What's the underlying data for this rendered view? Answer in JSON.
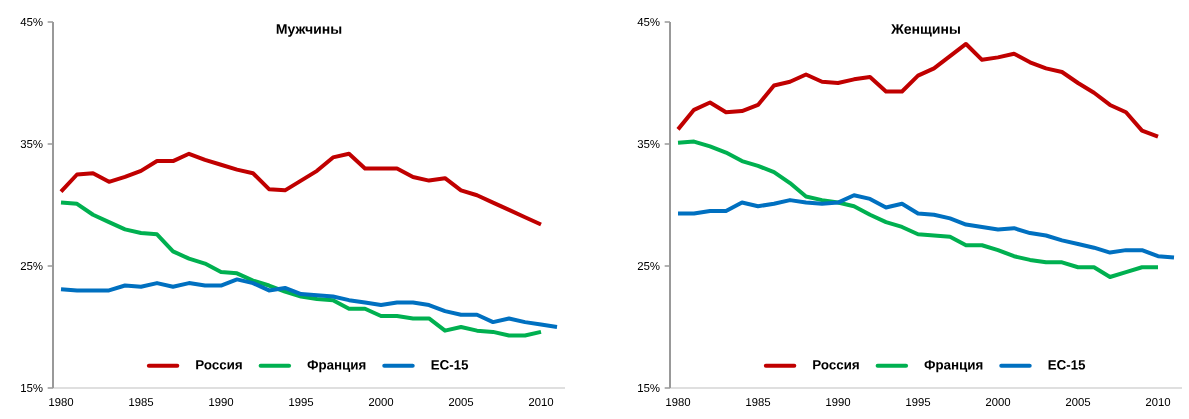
{
  "chart_data": [
    {
      "type": "line",
      "title": "Мужчины",
      "x": [
        1980,
        1981,
        1982,
        1983,
        1984,
        1985,
        1986,
        1987,
        1988,
        1989,
        1990,
        1991,
        1992,
        1993,
        1994,
        1995,
        1996,
        1997,
        1998,
        1999,
        2000,
        2001,
        2002,
        2003,
        2004,
        2005,
        2006,
        2007,
        2008,
        2009,
        2010,
        2011
      ],
      "series": [
        {
          "name": "Россия",
          "color": "#c00000",
          "values": [
            31.1,
            32.5,
            32.6,
            31.9,
            32.3,
            32.8,
            33.6,
            33.6,
            34.2,
            33.7,
            33.3,
            32.9,
            32.6,
            31.3,
            31.2,
            32.0,
            32.8,
            33.9,
            34.2,
            33.0,
            33.0,
            33.0,
            32.3,
            32.0,
            32.2,
            31.2,
            30.8,
            30.2,
            29.6,
            29.0,
            28.4,
            null
          ]
        },
        {
          "name": "Франция",
          "color": "#00b050",
          "values": [
            30.2,
            30.1,
            29.2,
            28.6,
            28.0,
            27.7,
            27.6,
            26.2,
            25.6,
            25.2,
            24.5,
            24.4,
            23.8,
            23.4,
            22.9,
            22.5,
            22.3,
            22.2,
            21.5,
            21.5,
            20.9,
            20.9,
            20.7,
            20.7,
            19.7,
            20.0,
            19.7,
            19.6,
            19.3,
            19.3,
            19.6,
            null
          ]
        },
        {
          "name": "ЕС-15",
          "color": "#0070c0",
          "values": [
            23.1,
            23.0,
            23.0,
            23.0,
            23.4,
            23.3,
            23.6,
            23.3,
            23.6,
            23.4,
            23.4,
            23.9,
            23.6,
            23.0,
            23.2,
            22.7,
            22.6,
            22.5,
            22.2,
            22.0,
            21.8,
            22.0,
            22.0,
            21.8,
            21.3,
            21.0,
            21.0,
            20.4,
            20.7,
            20.4,
            20.2,
            20.0
          ]
        }
      ],
      "xlim": [
        1979.5,
        2011.5
      ],
      "xticks": [
        1980,
        1985,
        1990,
        1995,
        2000,
        2005,
        2010
      ],
      "ylim": [
        15,
        45
      ],
      "yticks": [
        {
          "value": 15,
          "label": "15%"
        },
        {
          "value": 25,
          "label": "25%"
        },
        {
          "value": 35,
          "label": "35%"
        },
        {
          "value": 45,
          "label": "45%"
        }
      ],
      "legend": "bottom"
    },
    {
      "type": "line",
      "title": "Женщины",
      "x": [
        1980,
        1981,
        1982,
        1983,
        1984,
        1985,
        1986,
        1987,
        1988,
        1989,
        1990,
        1991,
        1992,
        1993,
        1994,
        1995,
        1996,
        1997,
        1998,
        1999,
        2000,
        2001,
        2002,
        2003,
        2004,
        2005,
        2006,
        2007,
        2008,
        2009,
        2010,
        2011
      ],
      "series": [
        {
          "name": "Россия",
          "color": "#c00000",
          "values": [
            36.2,
            37.8,
            38.4,
            37.6,
            37.7,
            38.2,
            39.8,
            40.1,
            40.7,
            40.1,
            40.0,
            40.3,
            40.5,
            39.3,
            39.3,
            40.6,
            41.2,
            42.2,
            43.2,
            41.9,
            42.1,
            42.4,
            41.7,
            41.2,
            40.9,
            40.0,
            39.2,
            38.2,
            37.6,
            36.1,
            35.6,
            null
          ]
        },
        {
          "name": "Франция",
          "color": "#00b050",
          "values": [
            35.1,
            35.2,
            34.8,
            34.3,
            33.6,
            33.2,
            32.7,
            31.8,
            30.7,
            30.4,
            30.2,
            29.9,
            29.2,
            28.6,
            28.2,
            27.6,
            27.5,
            27.4,
            26.7,
            26.7,
            26.3,
            25.8,
            25.5,
            25.3,
            25.3,
            24.9,
            24.9,
            24.1,
            24.5,
            24.9,
            24.9,
            null
          ]
        },
        {
          "name": "ЕС-15",
          "color": "#0070c0",
          "values": [
            29.3,
            29.3,
            29.5,
            29.5,
            30.2,
            29.9,
            30.1,
            30.4,
            30.2,
            30.1,
            30.2,
            30.8,
            30.5,
            29.8,
            30.1,
            29.3,
            29.2,
            28.9,
            28.4,
            28.2,
            28.0,
            28.1,
            27.7,
            27.5,
            27.1,
            26.8,
            26.5,
            26.1,
            26.3,
            26.3,
            25.8,
            25.7
          ]
        }
      ],
      "xlim": [
        1979.5,
        2011.5
      ],
      "xticks": [
        1980,
        1985,
        1990,
        1995,
        2000,
        2005,
        2010
      ],
      "ylim": [
        15,
        45
      ],
      "yticks": [
        {
          "value": 15,
          "label": "15%"
        },
        {
          "value": 25,
          "label": "25%"
        },
        {
          "value": 35,
          "label": "35%"
        },
        {
          "value": 45,
          "label": "45%"
        }
      ],
      "legend": "bottom"
    }
  ]
}
